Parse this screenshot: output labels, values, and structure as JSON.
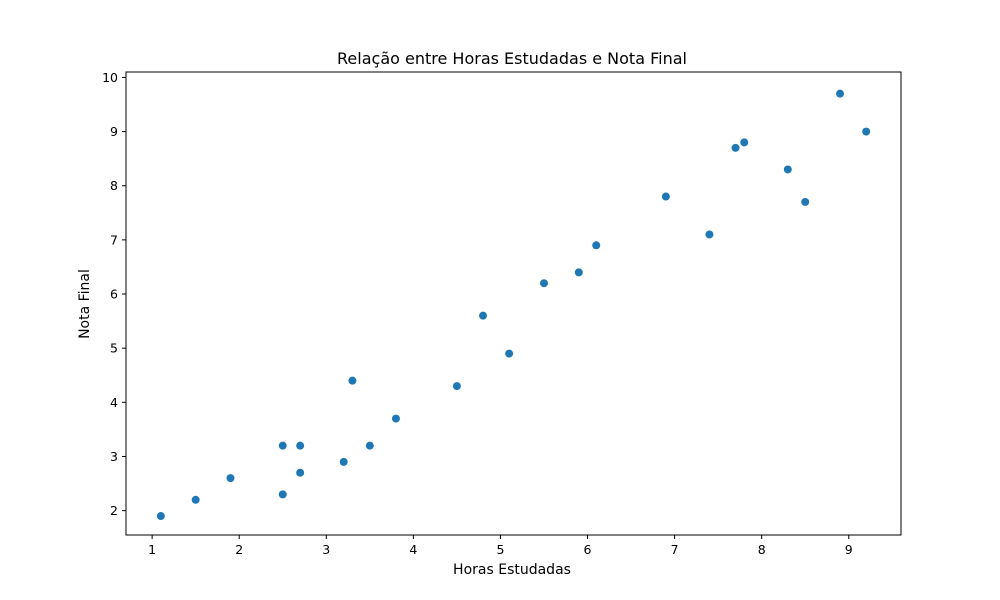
{
  "chart_data": {
    "type": "scatter",
    "title": "Relação entre Horas Estudadas e Nota Final",
    "xlabel": "Horas Estudadas",
    "ylabel": "Nota Final",
    "xlim": [
      0.7,
      9.6
    ],
    "ylim": [
      1.55,
      10.1
    ],
    "xticks": [
      "1",
      "2",
      "3",
      "4",
      "5",
      "6",
      "7",
      "8",
      "9"
    ],
    "yticks": [
      "2",
      "3",
      "4",
      "5",
      "6",
      "7",
      "8",
      "9",
      "10"
    ],
    "grid": false,
    "point_color": "#1f77b4",
    "points": [
      {
        "x": 1.1,
        "y": 1.9
      },
      {
        "x": 1.5,
        "y": 2.2
      },
      {
        "x": 1.9,
        "y": 2.6
      },
      {
        "x": 2.5,
        "y": 3.2
      },
      {
        "x": 2.5,
        "y": 2.3
      },
      {
        "x": 2.7,
        "y": 3.2
      },
      {
        "x": 2.7,
        "y": 2.7
      },
      {
        "x": 3.2,
        "y": 2.9
      },
      {
        "x": 3.3,
        "y": 4.4
      },
      {
        "x": 3.5,
        "y": 3.2
      },
      {
        "x": 3.8,
        "y": 3.7
      },
      {
        "x": 4.5,
        "y": 4.3
      },
      {
        "x": 4.8,
        "y": 5.6
      },
      {
        "x": 5.1,
        "y": 4.9
      },
      {
        "x": 5.5,
        "y": 6.2
      },
      {
        "x": 5.9,
        "y": 6.4
      },
      {
        "x": 6.1,
        "y": 6.9
      },
      {
        "x": 6.9,
        "y": 7.8
      },
      {
        "x": 7.4,
        "y": 7.1
      },
      {
        "x": 7.7,
        "y": 8.7
      },
      {
        "x": 7.8,
        "y": 8.8
      },
      {
        "x": 8.3,
        "y": 8.3
      },
      {
        "x": 8.5,
        "y": 7.7
      },
      {
        "x": 8.9,
        "y": 9.7
      },
      {
        "x": 9.2,
        "y": 9.0
      }
    ]
  }
}
